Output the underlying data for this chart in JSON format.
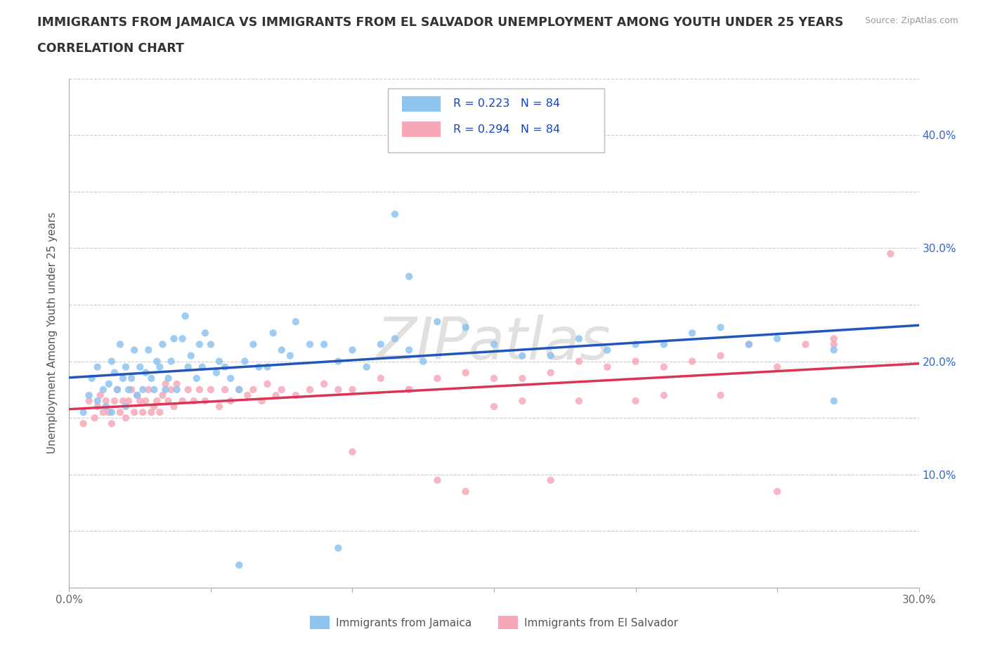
{
  "title_line1": "IMMIGRANTS FROM JAMAICA VS IMMIGRANTS FROM EL SALVADOR UNEMPLOYMENT AMONG YOUTH UNDER 25 YEARS",
  "title_line2": "CORRELATION CHART",
  "source": "Source: ZipAtlas.com",
  "ylabel": "Unemployment Among Youth under 25 years",
  "xlim": [
    0.0,
    0.3
  ],
  "ylim": [
    0.0,
    0.45
  ],
  "jamaica_color": "#8dc4f0",
  "elsalvador_color": "#f7a8b8",
  "jamaica_line_color": "#2255bb",
  "elsalvador_line_color": "#dd3355",
  "jamaica_R": 0.223,
  "jamaica_N": 84,
  "elsalvador_R": 0.294,
  "elsalvador_N": 84,
  "watermark": "ZIPatlas",
  "legend_label_jamaica": "Immigrants from Jamaica",
  "legend_label_elsalvador": "Immigrants from El Salvador",
  "jamaica_x": [
    0.005,
    0.007,
    0.008,
    0.01,
    0.01,
    0.012,
    0.013,
    0.014,
    0.015,
    0.015,
    0.016,
    0.017,
    0.018,
    0.019,
    0.02,
    0.02,
    0.021,
    0.022,
    0.023,
    0.024,
    0.025,
    0.026,
    0.027,
    0.028,
    0.029,
    0.03,
    0.031,
    0.032,
    0.033,
    0.034,
    0.035,
    0.036,
    0.037,
    0.038,
    0.04,
    0.041,
    0.042,
    0.043,
    0.045,
    0.046,
    0.047,
    0.048,
    0.05,
    0.052,
    0.053,
    0.055,
    0.057,
    0.06,
    0.062,
    0.065,
    0.067,
    0.07,
    0.072,
    0.075,
    0.078,
    0.08,
    0.085,
    0.09,
    0.095,
    0.1,
    0.105,
    0.11,
    0.115,
    0.12,
    0.125,
    0.13,
    0.14,
    0.15,
    0.16,
    0.17,
    0.18,
    0.19,
    0.2,
    0.21,
    0.22,
    0.23,
    0.24,
    0.25,
    0.27,
    0.27,
    0.115,
    0.12,
    0.095,
    0.06
  ],
  "jamaica_y": [
    0.155,
    0.17,
    0.185,
    0.195,
    0.165,
    0.175,
    0.16,
    0.18,
    0.155,
    0.2,
    0.19,
    0.175,
    0.215,
    0.185,
    0.16,
    0.195,
    0.175,
    0.185,
    0.21,
    0.17,
    0.195,
    0.175,
    0.19,
    0.21,
    0.185,
    0.175,
    0.2,
    0.195,
    0.215,
    0.175,
    0.185,
    0.2,
    0.22,
    0.175,
    0.22,
    0.24,
    0.195,
    0.205,
    0.185,
    0.215,
    0.195,
    0.225,
    0.215,
    0.19,
    0.2,
    0.195,
    0.185,
    0.175,
    0.2,
    0.215,
    0.195,
    0.195,
    0.225,
    0.21,
    0.205,
    0.235,
    0.215,
    0.215,
    0.2,
    0.21,
    0.195,
    0.215,
    0.22,
    0.21,
    0.2,
    0.235,
    0.23,
    0.215,
    0.205,
    0.205,
    0.22,
    0.21,
    0.215,
    0.215,
    0.225,
    0.23,
    0.215,
    0.22,
    0.165,
    0.21,
    0.33,
    0.275,
    0.035,
    0.02
  ],
  "elsalvador_x": [
    0.005,
    0.007,
    0.009,
    0.01,
    0.011,
    0.012,
    0.013,
    0.014,
    0.015,
    0.016,
    0.017,
    0.018,
    0.019,
    0.02,
    0.021,
    0.022,
    0.023,
    0.024,
    0.025,
    0.026,
    0.027,
    0.028,
    0.029,
    0.03,
    0.031,
    0.032,
    0.033,
    0.034,
    0.035,
    0.036,
    0.037,
    0.038,
    0.04,
    0.042,
    0.044,
    0.046,
    0.048,
    0.05,
    0.053,
    0.055,
    0.057,
    0.06,
    0.063,
    0.065,
    0.068,
    0.07,
    0.073,
    0.075,
    0.08,
    0.085,
    0.09,
    0.095,
    0.1,
    0.11,
    0.12,
    0.13,
    0.14,
    0.15,
    0.16,
    0.17,
    0.18,
    0.19,
    0.2,
    0.21,
    0.22,
    0.23,
    0.24,
    0.25,
    0.26,
    0.27,
    0.1,
    0.12,
    0.13,
    0.15,
    0.16,
    0.17,
    0.18,
    0.2,
    0.21,
    0.23,
    0.25,
    0.27,
    0.29,
    0.14
  ],
  "elsalvador_y": [
    0.145,
    0.165,
    0.15,
    0.16,
    0.17,
    0.155,
    0.165,
    0.155,
    0.145,
    0.165,
    0.175,
    0.155,
    0.165,
    0.15,
    0.165,
    0.175,
    0.155,
    0.17,
    0.165,
    0.155,
    0.165,
    0.175,
    0.155,
    0.16,
    0.165,
    0.155,
    0.17,
    0.18,
    0.165,
    0.175,
    0.16,
    0.18,
    0.165,
    0.175,
    0.165,
    0.175,
    0.165,
    0.175,
    0.16,
    0.175,
    0.165,
    0.175,
    0.17,
    0.175,
    0.165,
    0.18,
    0.17,
    0.175,
    0.17,
    0.175,
    0.18,
    0.175,
    0.175,
    0.185,
    0.175,
    0.185,
    0.19,
    0.185,
    0.185,
    0.19,
    0.2,
    0.195,
    0.2,
    0.195,
    0.2,
    0.205,
    0.215,
    0.195,
    0.215,
    0.22,
    0.12,
    0.175,
    0.095,
    0.16,
    0.165,
    0.095,
    0.165,
    0.165,
    0.17,
    0.17,
    0.085,
    0.215,
    0.295,
    0.085
  ]
}
